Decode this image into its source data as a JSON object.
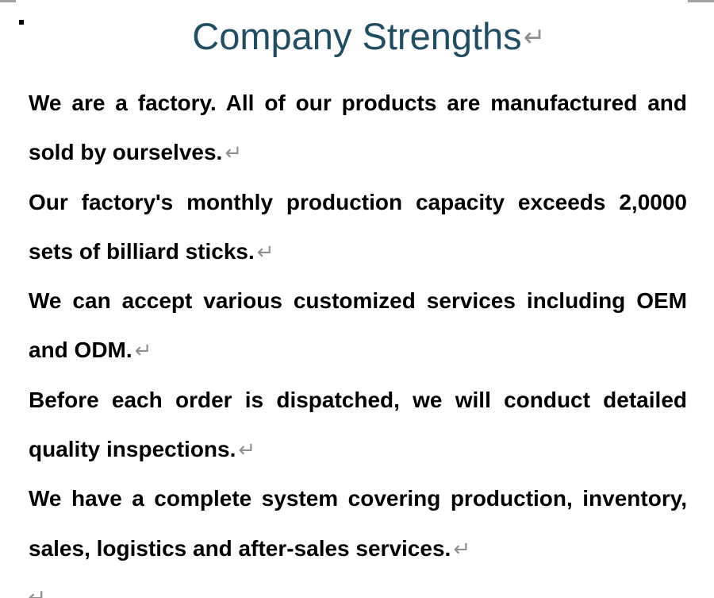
{
  "title": "Company Strengths",
  "paragraph_mark": "↵",
  "colors": {
    "title_text": "#1F4E63",
    "body_text": "#000000",
    "paragraph_mark": "#8f8f8f",
    "top_edge": "#a3a3a3"
  },
  "paragraphs": [
    {
      "line1": "We are a factory. All of our products are manufactured and",
      "line2": "sold by ourselves."
    },
    {
      "line1": "Our factory's monthly production capacity exceeds 2,0000",
      "line2": "sets of billiard sticks."
    },
    {
      "line1": "We can accept various customized services including OEM",
      "line2": "and ODM."
    },
    {
      "line1": "Before each order is dispatched, we will conduct detailed",
      "line2": "quality inspections."
    },
    {
      "line1": "We have a complete system covering production, inventory,",
      "line2": "sales, logistics and after-sales services."
    }
  ]
}
